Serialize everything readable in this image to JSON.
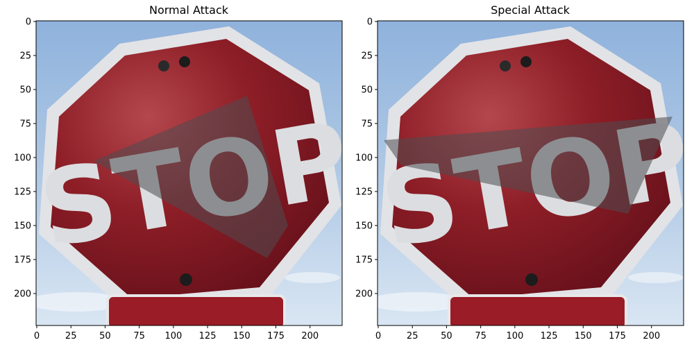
{
  "panels": [
    {
      "title": "Normal Attack",
      "image": {
        "subject": "stop sign",
        "sign_text": "STOP",
        "patch": "shadow-quadrilateral",
        "colors": {
          "sky": "#a9c3e2",
          "sign_red": "#8c1c24",
          "border": "#e4e4e6",
          "patch": "#5a5a5c"
        }
      },
      "x_ticks": [
        0,
        25,
        50,
        75,
        100,
        125,
        150,
        175,
        200
      ],
      "y_ticks": [
        0,
        25,
        50,
        75,
        100,
        125,
        150,
        175,
        200
      ],
      "x_range": [
        0,
        223
      ],
      "y_range": [
        0,
        223
      ]
    },
    {
      "title": "Special Attack",
      "image": {
        "subject": "stop sign",
        "sign_text": "STOP",
        "patch": "shadow-band",
        "colors": {
          "sky": "#a9c3e2",
          "sign_red": "#8c1c24",
          "border": "#e4e4e6",
          "patch": "#5a5a5c"
        }
      },
      "x_ticks": [
        0,
        25,
        50,
        75,
        100,
        125,
        150,
        175,
        200
      ],
      "y_ticks": [
        0,
        25,
        50,
        75,
        100,
        125,
        150,
        175,
        200
      ],
      "x_range": [
        0,
        223
      ],
      "y_range": [
        0,
        223
      ]
    }
  ]
}
